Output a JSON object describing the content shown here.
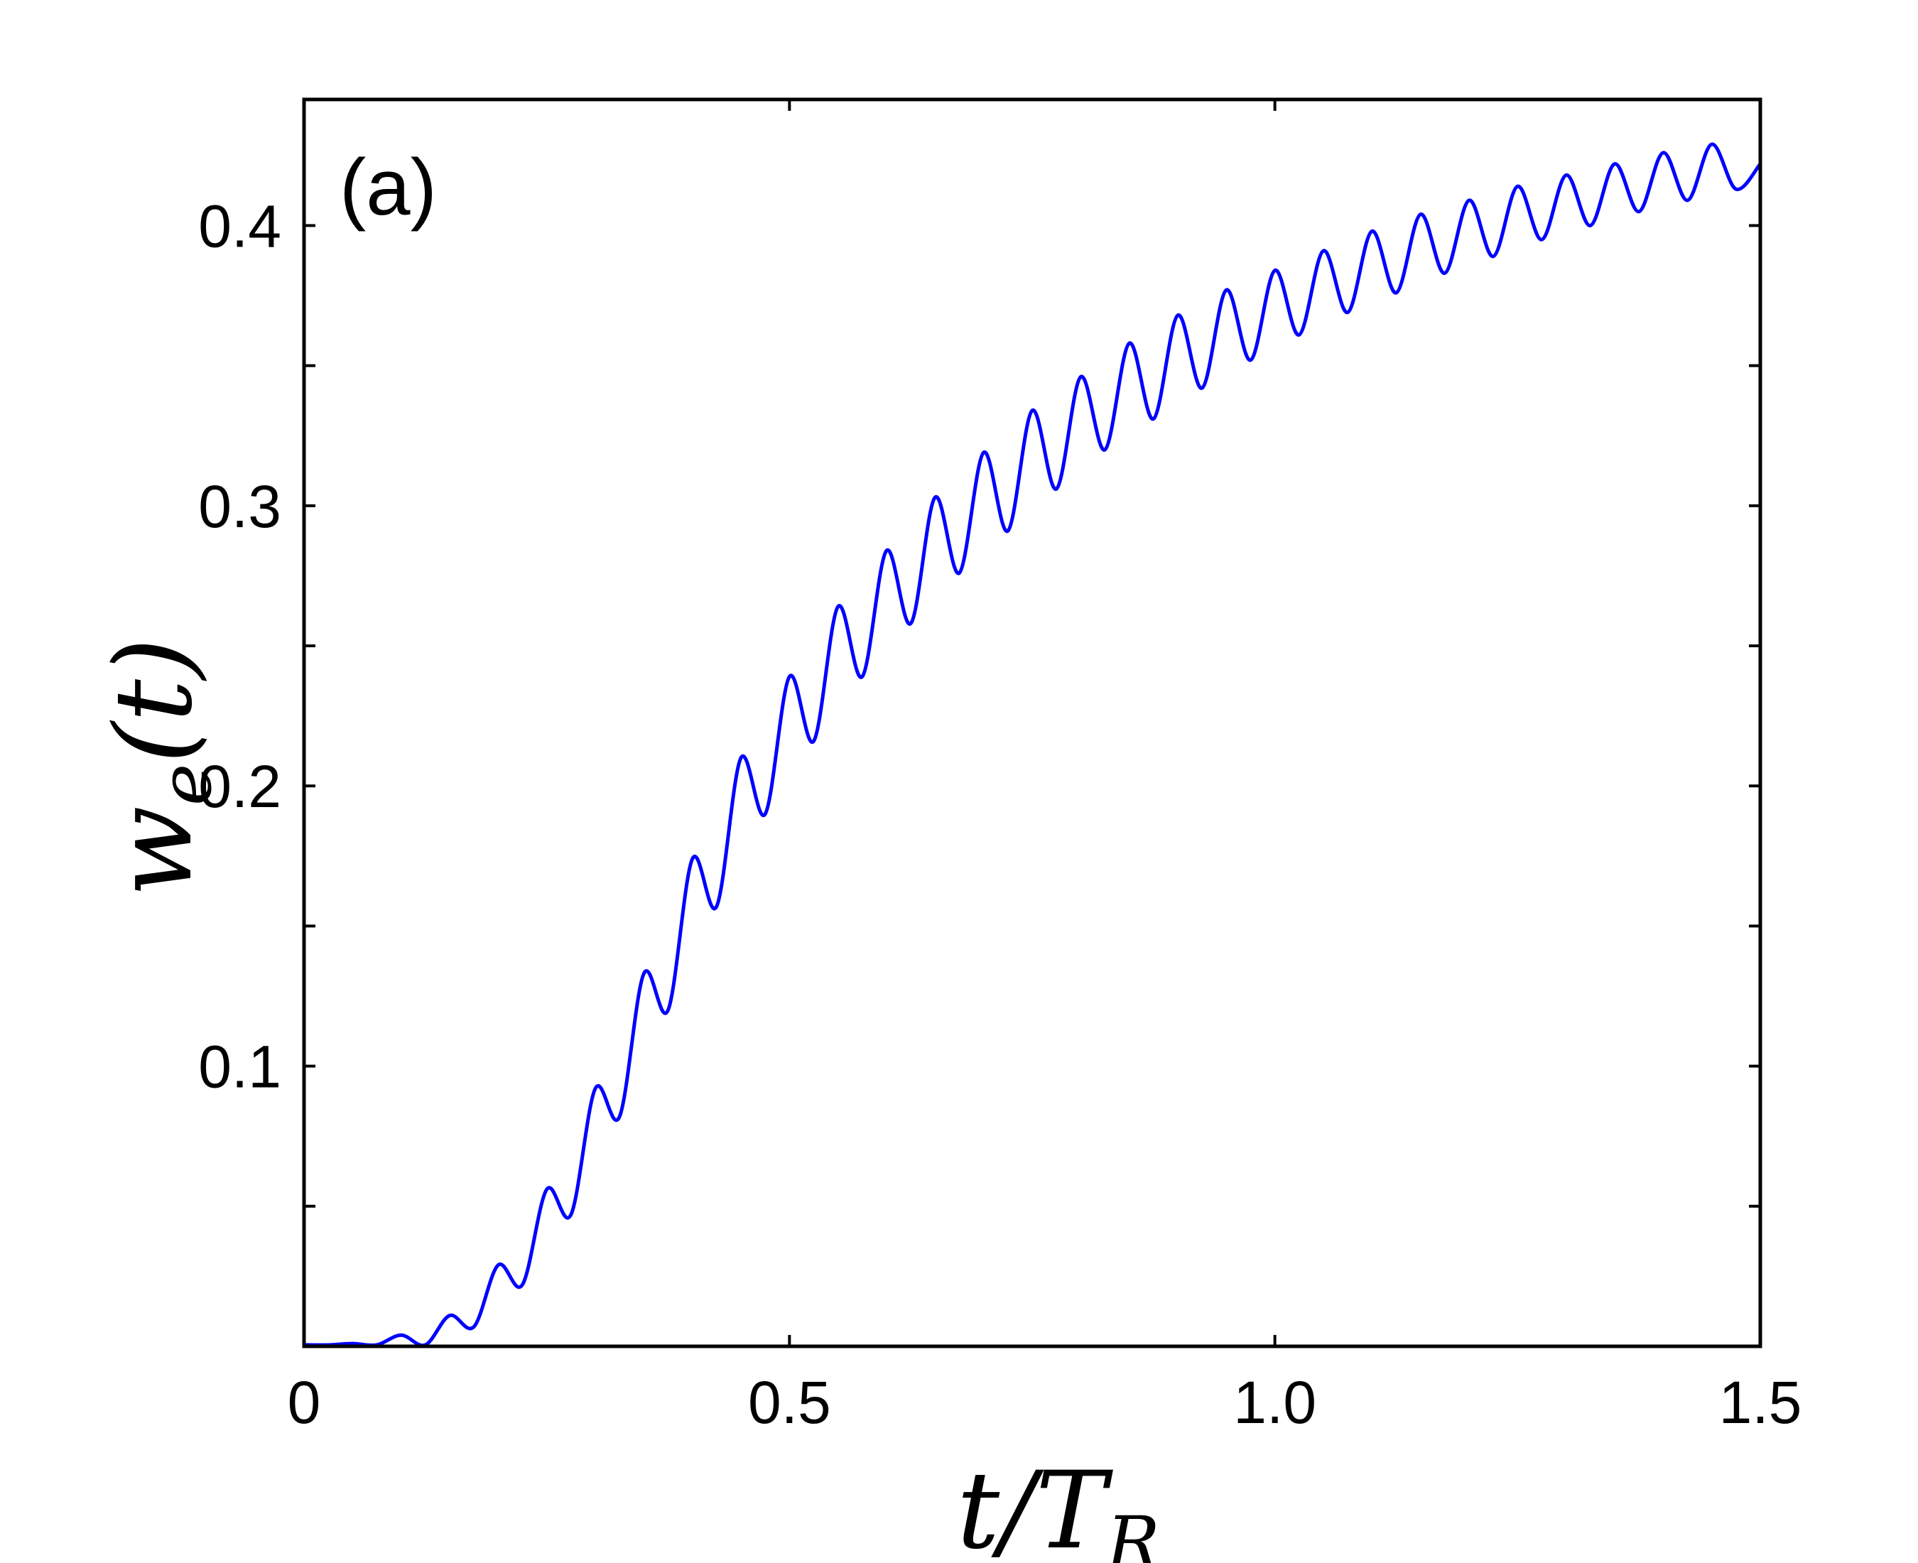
{
  "chart_data": {
    "type": "line",
    "panel_label": "(a)",
    "xlabel": {
      "main": "t/T",
      "sub": "R"
    },
    "ylabel": {
      "main": "w",
      "sub": "e",
      "tail": "(t)"
    },
    "xlim": [
      0,
      1.5
    ],
    "ylim": [
      0,
      0.445
    ],
    "x_ticks": [
      {
        "value": 0,
        "label": "0"
      },
      {
        "value": 0.5,
        "label": "0.5"
      },
      {
        "value": 1.0,
        "label": "1.0"
      },
      {
        "value": 1.5,
        "label": "1.5"
      }
    ],
    "x_minor_ticks": [],
    "y_ticks": [
      {
        "value": 0.1,
        "label": "0.1"
      },
      {
        "value": 0.2,
        "label": "0.2"
      },
      {
        "value": 0.3,
        "label": "0.3"
      },
      {
        "value": 0.4,
        "label": "0.4"
      }
    ],
    "y_minor_ticks": [
      0.05,
      0.15,
      0.25,
      0.35
    ],
    "grid": false,
    "series": [
      {
        "color": "#0000ff",
        "x": [
          0,
          0.025,
          0.05,
          0.075,
          0.1,
          0.125,
          0.15,
          0.175,
          0.2,
          0.225,
          0.25,
          0.275,
          0.3,
          0.325,
          0.35,
          0.375,
          0.4,
          0.425,
          0.45,
          0.475,
          0.5,
          0.525,
          0.55,
          0.575,
          0.6,
          0.625,
          0.65,
          0.675,
          0.7,
          0.725,
          0.75,
          0.775,
          0.8,
          0.825,
          0.85,
          0.875,
          0.9,
          0.925,
          0.95,
          0.975,
          1.0,
          1.025,
          1.05,
          1.075,
          1.1,
          1.125,
          1.15,
          1.175,
          1.2,
          1.225,
          1.25,
          1.275,
          1.3,
          1.325,
          1.35,
          1.375,
          1.4,
          1.425,
          1.45,
          1.475,
          1.5
        ],
        "y": [
          0.0005,
          0.0005,
          0.001,
          0.0005,
          0.004,
          0.0005,
          0.011,
          0.007,
          0.029,
          0.022,
          0.056,
          0.047,
          0.092,
          0.082,
          0.133,
          0.12,
          0.174,
          0.157,
          0.21,
          0.19,
          0.239,
          0.216,
          0.264,
          0.239,
          0.284,
          0.258,
          0.303,
          0.276,
          0.319,
          0.291,
          0.334,
          0.306,
          0.346,
          0.32,
          0.358,
          0.331,
          0.368,
          0.342,
          0.377,
          0.352,
          0.384,
          0.361,
          0.391,
          0.369,
          0.398,
          0.376,
          0.404,
          0.383,
          0.409,
          0.389,
          0.414,
          0.395,
          0.418,
          0.4,
          0.422,
          0.405,
          0.426,
          0.409,
          0.429,
          0.413,
          0.422
        ]
      }
    ]
  }
}
